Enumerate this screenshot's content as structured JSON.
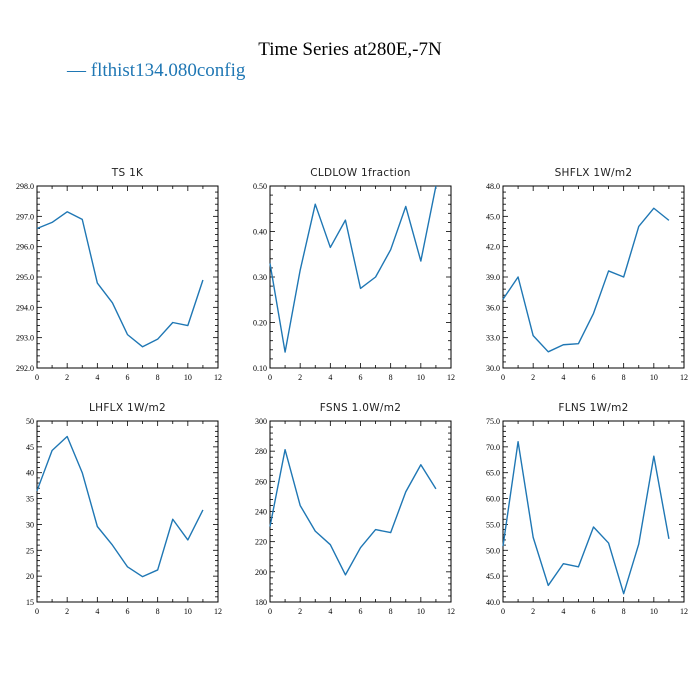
{
  "title": "Time Series at280E,-7N",
  "legend": {
    "label": "— flthist134.080config",
    "color": "#1f77b4"
  },
  "chart_data": [
    {
      "type": "line",
      "title": "TS   1K",
      "x": [
        0,
        1,
        2,
        3,
        4,
        5,
        6,
        7,
        8,
        9,
        10,
        11
      ],
      "series": [
        {
          "values": [
            296.6,
            296.8,
            297.15,
            296.9,
            294.8,
            294.15,
            293.1,
            292.7,
            292.95,
            293.5,
            293.4,
            294.9
          ]
        }
      ],
      "xlim": [
        0,
        12
      ],
      "ylim": [
        292.0,
        298.0
      ],
      "xticks": [
        0,
        2,
        4,
        6,
        8,
        10,
        12
      ],
      "xtick_labels": [
        "0",
        "2",
        "4",
        "6",
        "8",
        "10",
        "12"
      ],
      "yticks": [
        292.0,
        293.0,
        294.0,
        295.0,
        296.0,
        297.0,
        298.0
      ],
      "ytick_labels": [
        "292.0",
        "293.0",
        "294.0",
        "295.0",
        "296.0",
        "297.0",
        "298.0"
      ],
      "color": "#1f77b4"
    },
    {
      "type": "line",
      "title": "CLDLOW   1fraction",
      "x": [
        0,
        1,
        2,
        3,
        4,
        5,
        6,
        7,
        8,
        9,
        10,
        11
      ],
      "series": [
        {
          "values": [
            0.33,
            0.135,
            0.315,
            0.46,
            0.365,
            0.425,
            0.275,
            0.3,
            0.36,
            0.455,
            0.335,
            0.5
          ]
        }
      ],
      "xlim": [
        0,
        12
      ],
      "ylim": [
        0.1,
        0.5
      ],
      "xticks": [
        0,
        2,
        4,
        6,
        8,
        10,
        12
      ],
      "xtick_labels": [
        "0",
        "2",
        "4",
        "6",
        "8",
        "10",
        "12"
      ],
      "yticks": [
        0.1,
        0.2,
        0.3,
        0.4,
        0.5
      ],
      "ytick_labels": [
        "0.10",
        "0.20",
        "0.30",
        "0.40",
        "0.50"
      ],
      "color": "#1f77b4"
    },
    {
      "type": "line",
      "title": "SHFLX   1W/m2",
      "x": [
        0,
        1,
        2,
        3,
        4,
        5,
        6,
        7,
        8,
        9,
        10,
        11
      ],
      "series": [
        {
          "values": [
            36.8,
            39.0,
            33.2,
            31.6,
            32.3,
            32.4,
            35.4,
            39.6,
            39.0,
            44.0,
            45.8,
            44.6
          ]
        }
      ],
      "xlim": [
        0,
        12
      ],
      "ylim": [
        30.0,
        48.0
      ],
      "xticks": [
        0,
        2,
        4,
        6,
        8,
        10,
        12
      ],
      "xtick_labels": [
        "0",
        "2",
        "4",
        "6",
        "8",
        "10",
        "12"
      ],
      "yticks": [
        30.0,
        33.0,
        36.0,
        39.0,
        42.0,
        45.0,
        48.0
      ],
      "ytick_labels": [
        "30.0",
        "33.0",
        "36.0",
        "39.0",
        "42.0",
        "45.0",
        "48.0"
      ],
      "color": "#1f77b4"
    },
    {
      "type": "line",
      "title": "LHFLX   1W/m2",
      "x": [
        0,
        1,
        2,
        3,
        4,
        5,
        6,
        7,
        8,
        9,
        10,
        11
      ],
      "series": [
        {
          "values": [
            36.5,
            44.3,
            47.0,
            40.0,
            29.6,
            26.0,
            21.8,
            19.9,
            21.2,
            31.0,
            27.0,
            32.8
          ]
        }
      ],
      "xlim": [
        0,
        12
      ],
      "ylim": [
        15,
        50
      ],
      "xticks": [
        0,
        2,
        4,
        6,
        8,
        10,
        12
      ],
      "xtick_labels": [
        "0",
        "2",
        "4",
        "6",
        "8",
        "10",
        "12"
      ],
      "yticks": [
        15,
        20,
        25,
        30,
        35,
        40,
        45,
        50
      ],
      "ytick_labels": [
        "15",
        "20",
        "25",
        "30",
        "35",
        "40",
        "45",
        "50"
      ],
      "color": "#1f77b4"
    },
    {
      "type": "line",
      "title": "FSNS   1.0W/m2",
      "x": [
        0,
        1,
        2,
        3,
        4,
        5,
        6,
        7,
        8,
        9,
        10,
        11
      ],
      "series": [
        {
          "values": [
            230,
            281,
            244,
            227,
            218,
            198,
            216,
            228,
            226,
            253,
            271,
            255
          ]
        }
      ],
      "xlim": [
        0,
        12
      ],
      "ylim": [
        180,
        300
      ],
      "xticks": [
        0,
        2,
        4,
        6,
        8,
        10,
        12
      ],
      "xtick_labels": [
        "0",
        "2",
        "4",
        "6",
        "8",
        "10",
        "12"
      ],
      "yticks": [
        180,
        200,
        220,
        240,
        260,
        280,
        300
      ],
      "ytick_labels": [
        "180",
        "200",
        "220",
        "240",
        "260",
        "280",
        "300"
      ],
      "color": "#1f77b4"
    },
    {
      "type": "line",
      "title": "FLNS   1W/m2",
      "x": [
        0,
        1,
        2,
        3,
        4,
        5,
        6,
        7,
        8,
        9,
        10,
        11
      ],
      "series": [
        {
          "values": [
            50.8,
            71.0,
            52.5,
            43.2,
            47.4,
            46.8,
            54.5,
            51.4,
            41.6,
            51.2,
            68.2,
            52.2
          ]
        }
      ],
      "xlim": [
        0,
        12
      ],
      "ylim": [
        40.0,
        75.0
      ],
      "xticks": [
        0,
        2,
        4,
        6,
        8,
        10,
        12
      ],
      "xtick_labels": [
        "0",
        "2",
        "4",
        "6",
        "8",
        "10",
        "12"
      ],
      "yticks": [
        40.0,
        45.0,
        50.0,
        55.0,
        60.0,
        65.0,
        70.0,
        75.0
      ],
      "ytick_labels": [
        "40.0",
        "45.0",
        "50.0",
        "55.0",
        "60.0",
        "65.0",
        "70.0",
        "75.0"
      ],
      "color": "#1f77b4"
    }
  ]
}
